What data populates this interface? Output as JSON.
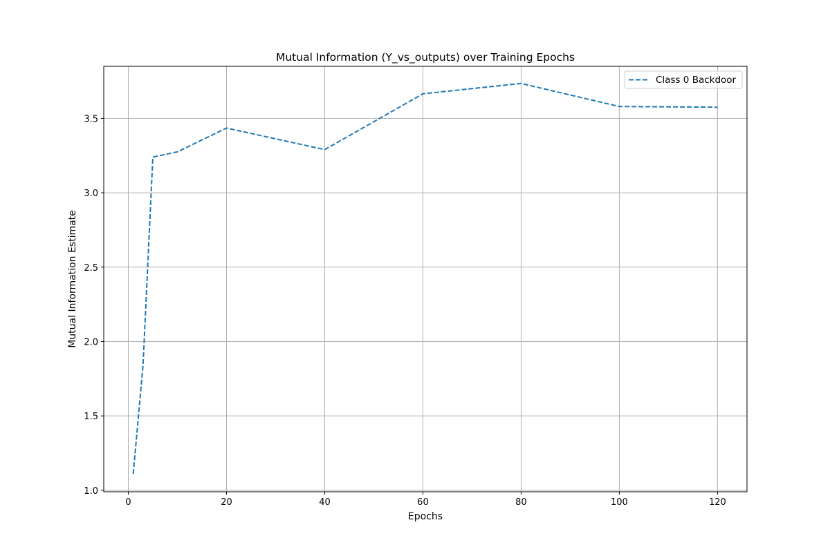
{
  "chart_data": {
    "type": "line",
    "title": "Mutual Information (Y_vs_outputs) over Training Epochs",
    "xlabel": "Epochs",
    "ylabel": "Mutual Information Estimate",
    "xlim": [
      -5,
      126
    ],
    "ylim": [
      0.99,
      3.85
    ],
    "xticks": [
      0,
      20,
      40,
      60,
      80,
      100,
      120
    ],
    "xtick_labels": [
      "0",
      "20",
      "40",
      "60",
      "80",
      "100",
      "120"
    ],
    "yticks": [
      1.0,
      1.5,
      2.0,
      2.5,
      3.0,
      3.5
    ],
    "ytick_labels": [
      "1.0",
      "1.5",
      "2.0",
      "2.5",
      "3.0",
      "3.5"
    ],
    "grid": true,
    "legend_position": "top-right",
    "series": [
      {
        "name": "Class 0 Backdoor",
        "color": "#1f77b4",
        "linestyle": "dashed",
        "x": [
          1,
          3,
          5,
          10,
          20,
          40,
          60,
          80,
          100,
          120
        ],
        "y": [
          1.11,
          1.84,
          3.24,
          3.275,
          3.435,
          3.29,
          3.665,
          3.735,
          3.58,
          3.575
        ]
      }
    ]
  }
}
